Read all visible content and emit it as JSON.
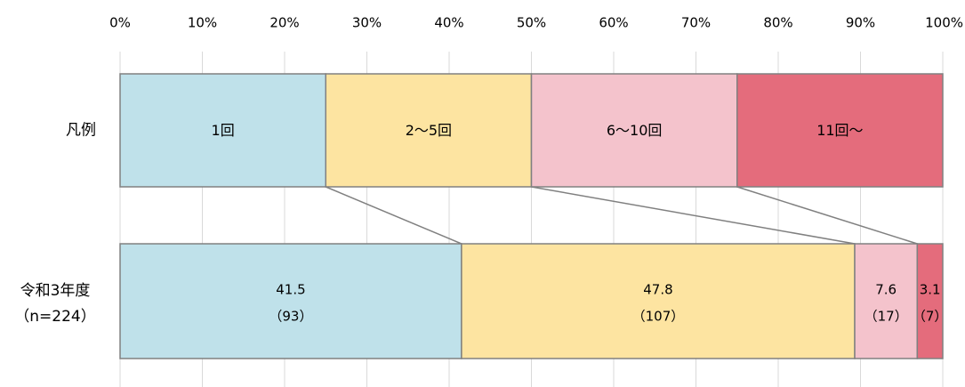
{
  "chart_data": {
    "type": "bar",
    "orientation": "horizontal",
    "stacked": true,
    "x_axis": {
      "position": "top",
      "ticks": [
        "0%",
        "10%",
        "20%",
        "30%",
        "40%",
        "50%",
        "60%",
        "70%",
        "80%",
        "90%",
        "100%"
      ],
      "range": [
        0,
        100
      ]
    },
    "grid": true,
    "colors": [
      "#bfe1ea",
      "#fde4a1",
      "#f4c3cc",
      "#e46c7c"
    ],
    "legend_row": {
      "label": "凡例",
      "segments": [
        {
          "label": "1回",
          "value": 25
        },
        {
          "label": "2～5回",
          "value": 25
        },
        {
          "label": "6～10回",
          "value": 25
        },
        {
          "label": "11回～",
          "value": 25
        }
      ]
    },
    "data_row": {
      "label_line1": "令和3年度",
      "label_line2": "（n=224）",
      "segments": [
        {
          "value": 41.5,
          "value_label": "41.5",
          "count_label": "（93）"
        },
        {
          "value": 47.8,
          "value_label": "47.8",
          "count_label": "（107）"
        },
        {
          "value": 7.6,
          "value_label": "7.6",
          "count_label": "（17）"
        },
        {
          "value": 3.1,
          "value_label": "3.1",
          "count_label": "（7）"
        }
      ]
    }
  }
}
